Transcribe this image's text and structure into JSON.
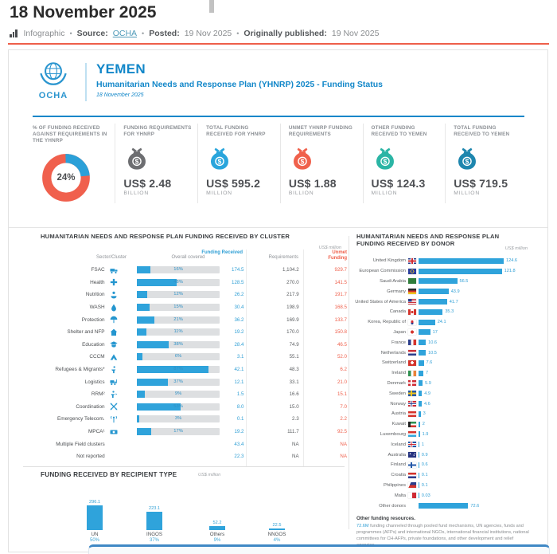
{
  "header": {
    "title": "18 November 2025",
    "meta": {
      "type_label": "Infographic",
      "source_label": "Source:",
      "source_value": "OCHA",
      "posted_label": "Posted:",
      "posted_value": "19 Nov 2025",
      "published_label": "Originally published:",
      "published_value": "19 Nov 2025"
    }
  },
  "banner": {
    "org": "OCHA",
    "country": "YEMEN",
    "subtitle": "Humanitarian Needs and Response Plan (YHNRP) 2025 - Funding Status",
    "date": "18 November 2025"
  },
  "stats": [
    {
      "label": "% OF FUNDING RECEIVED AGAINST REQUIREMENTS IN THE YHNRP",
      "type": "donut",
      "percent": 24,
      "display": "24%",
      "color_funded": "#2ba0d8",
      "color_unmet": "#f0604d"
    },
    {
      "label": "FUNDING REQUIREMENTS FOR YHNRP",
      "type": "bag",
      "icon": "money-bag-icon",
      "color": "#6d6e71",
      "value": "US$ 2.48",
      "unit": "BILLION"
    },
    {
      "label": "TOTAL FUNDING RECEIVED FOR YHNRP",
      "type": "bag",
      "icon": "money-bag-icon",
      "color": "#29a5dc",
      "value": "US$ 595.2",
      "unit": "MILLION"
    },
    {
      "label": "UNMET YHNRP FUNDING REQUIREMENTS",
      "type": "bag",
      "icon": "money-bag-icon",
      "color": "#f0614c",
      "value": "US$ 1.88",
      "unit": "BILLION"
    },
    {
      "label": "OTHER FUNDING RECEIVED TO YEMEN",
      "type": "bag",
      "icon": "money-bag-icon",
      "color": "#2bb5a5",
      "value": "US$ 124.3",
      "unit": "MILLION"
    },
    {
      "label": "TOTAL FUNDING RECEIVED TO YEMEN",
      "type": "bag",
      "icon": "money-bag-icon",
      "color": "#1e86ae",
      "value": "US$ 719.5",
      "unit": "MILLION"
    }
  ],
  "sections": {
    "cluster": {
      "title": "HUMANITARIAN NEEDS AND RESPONSE PLAN FUNDING RECEIVED BY CLUSTER",
      "note": "US$ million",
      "columns": [
        "Sector/Cluster",
        "Overall covered",
        "Funding Received",
        "Requirements",
        "Unmet Funding"
      ]
    },
    "donor": {
      "title": "HUMANITARIAN NEEDS AND RESPONSE PLAN FUNDING RECEIVED BY DONOR",
      "note": "US$ million",
      "footnote_title": "Other funding resources.",
      "footnote_amount": "72.6M",
      "footnote_body": "funding channeled through pooled fund mechanisms, UN agencies, funds and programmes (AFPs) and international NGOs, international financial institutions, national committees for CH-AFPs, private foundations, and other development and relief agencies."
    },
    "recipient": {
      "title": "FUNDING RECEIVED BY RECIPIENT TYPE",
      "note": "US$ million"
    }
  },
  "chart_data": [
    {
      "type": "pie",
      "title": "% of funding received against requirements in the YHNRP",
      "labels": [
        "Funded",
        "Unmet"
      ],
      "values": [
        24,
        76
      ],
      "colors": [
        "#2ba0d8",
        "#f0604d"
      ],
      "center_label": "24%"
    },
    {
      "type": "table",
      "title": "Humanitarian Needs and Response Plan funding received by cluster",
      "unit": "US$ million",
      "columns": [
        "Sector/Cluster",
        "Overall covered (%)",
        "Funding Received",
        "Requirements",
        "Unmet Funding"
      ],
      "rows": [
        {
          "sector": "FSAC",
          "icon": "truck-icon",
          "coverage_pct": 16,
          "funding": 174.5,
          "requirements": 1104.2,
          "unmet": 929.7
        },
        {
          "sector": "Health",
          "icon": "health-cross-icon",
          "coverage_pct": 48,
          "funding": 128.5,
          "requirements": 270.0,
          "unmet": 141.5
        },
        {
          "sector": "Nutrition",
          "icon": "nutrition-icon",
          "coverage_pct": 12,
          "funding": 26.2,
          "requirements": 217.9,
          "unmet": 191.7
        },
        {
          "sector": "WASH",
          "icon": "water-drop-icon",
          "coverage_pct": 15,
          "funding": 30.4,
          "requirements": 198.9,
          "unmet": 168.5
        },
        {
          "sector": "Protection",
          "icon": "protection-icon",
          "coverage_pct": 21,
          "funding": 36.2,
          "requirements": 169.9,
          "unmet": 133.7
        },
        {
          "sector": "Shelter and NFP",
          "icon": "shelter-house-icon",
          "coverage_pct": 11,
          "funding": 19.2,
          "requirements": 170.0,
          "unmet": 150.8
        },
        {
          "sector": "Education",
          "icon": "education-icon",
          "coverage_pct": 38,
          "funding": 28.4,
          "requirements": 74.9,
          "unmet": 46.5
        },
        {
          "sector": "CCCM",
          "icon": "tent-icon",
          "coverage_pct": 6,
          "funding": 3.1,
          "requirements": 55.1,
          "unmet": 52.0
        },
        {
          "sector": "Refugees & Migrants*",
          "icon": "runner-icon",
          "coverage_pct": 87,
          "funding": 42.1,
          "requirements": 48.3,
          "unmet": 6.2
        },
        {
          "sector": "Logistics",
          "icon": "forklift-icon",
          "coverage_pct": 37,
          "funding": 12.1,
          "requirements": 33.1,
          "unmet": 21.0
        },
        {
          "sector": "RRM²",
          "icon": "rrm-icon",
          "coverage_pct": 9,
          "funding": 1.5,
          "requirements": 16.6,
          "unmet": 15.1
        },
        {
          "sector": "Coordination",
          "icon": "coordination-arrows-icon",
          "coverage_pct": 53,
          "funding": 8.0,
          "requirements": 15.0,
          "unmet": 7.0
        },
        {
          "sector": "Emergency Telecom.",
          "icon": "antenna-icon",
          "coverage_pct": 3,
          "funding": 0.1,
          "requirements": 2.3,
          "unmet": 2.2
        },
        {
          "sector": "MPCA¹",
          "icon": "cash-icon",
          "coverage_pct": 17,
          "funding": 19.2,
          "requirements": 111.7,
          "unmet": 92.5
        },
        {
          "sector": "Multiple Field clusters",
          "icon": null,
          "coverage_pct": null,
          "funding": 43.4,
          "requirements": null,
          "unmet": null
        },
        {
          "sector": "Not reported",
          "icon": null,
          "coverage_pct": null,
          "funding": 22.3,
          "requirements": null,
          "unmet": null
        }
      ]
    },
    {
      "type": "bar",
      "orientation": "horizontal",
      "title": "Humanitarian Needs and Response Plan funding received by donor",
      "unit": "US$ million",
      "xlim": [
        0,
        130
      ],
      "rows": [
        {
          "name": "United Kingdom",
          "flag": "uk",
          "value": 124.6
        },
        {
          "name": "European Commission",
          "flag": "eu",
          "value": 121.8
        },
        {
          "name": "Saudi Arabia",
          "flag": "sa",
          "value": 56.5
        },
        {
          "name": "Germany",
          "flag": "de",
          "value": 43.9
        },
        {
          "name": "United States of America",
          "flag": "us",
          "value": 41.7
        },
        {
          "name": "Canada",
          "flag": "ca",
          "value": 35.3
        },
        {
          "name": "Korea, Republic of",
          "flag": "kr",
          "value": 24.1
        },
        {
          "name": "Japan",
          "flag": "jp",
          "value": 17
        },
        {
          "name": "France",
          "flag": "fr",
          "value": 10.6
        },
        {
          "name": "Netherlands",
          "flag": "nl",
          "value": 10.5
        },
        {
          "name": "Switzerland",
          "flag": "ch",
          "value": 7.6
        },
        {
          "name": "Ireland",
          "flag": "ie",
          "value": 7
        },
        {
          "name": "Denmark",
          "flag": "dk",
          "value": 5.9
        },
        {
          "name": "Sweden",
          "flag": "se",
          "value": 4.9
        },
        {
          "name": "Norway",
          "flag": "no",
          "value": 4.6
        },
        {
          "name": "Austria",
          "flag": "at",
          "value": 3
        },
        {
          "name": "Kuwait",
          "flag": "kw",
          "value": 2
        },
        {
          "name": "Luxembourg",
          "flag": "lu",
          "value": 1.9
        },
        {
          "name": "Iceland",
          "flag": "is",
          "value": 1
        },
        {
          "name": "Australia",
          "flag": "au",
          "value": 0.9
        },
        {
          "name": "Finland",
          "flag": "fi",
          "value": 0.6
        },
        {
          "name": "Croatia",
          "flag": "hr",
          "value": 0.1
        },
        {
          "name": "Philippines",
          "flag": "ph",
          "value": 0.1
        },
        {
          "name": "Malta",
          "flag": "mt",
          "value": 0.03
        },
        {
          "name": "Other donors",
          "flag": "none",
          "value": 72.6
        }
      ]
    },
    {
      "type": "bar",
      "title": "Funding received by recipient type",
      "unit": "US$ million",
      "categories": [
        "UN",
        "INGOS",
        "Others",
        "NNGOS"
      ],
      "values": [
        296.1,
        223.1,
        52.2,
        22.5
      ],
      "percents": [
        "50%",
        "37%",
        "9%",
        "4%"
      ]
    }
  ]
}
